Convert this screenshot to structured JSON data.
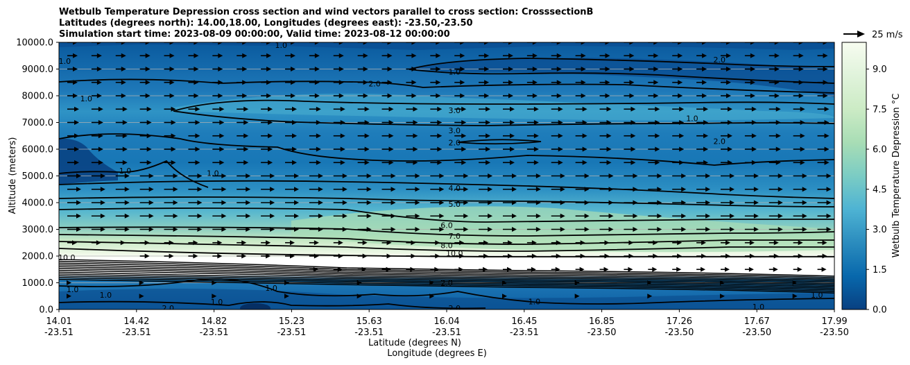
{
  "chart_data": {
    "type": "heatmap",
    "subtype": "filled contour cross-section with wind vectors",
    "title_lines": [
      "Wetbulb Temperature Depression cross section and wind vectors parallel to cross section: CrosssectionB",
      "Latitudes (degrees north): 14.00,18.00, Longitudes (degrees east): -23.50,-23.50",
      "Simulation start time: 2023-08-09 00:00:00, Valid time: 2023-08-12 00:00:00"
    ],
    "ylabel": "Altitude (meters)",
    "xlabel_lines": [
      "Latitude (degrees N)",
      "Longitude (degrees E)"
    ],
    "ylim": [
      0,
      10000
    ],
    "y_ticks": [
      "0.0",
      "1000.0",
      "2000.0",
      "3000.0",
      "4000.0",
      "5000.0",
      "6000.0",
      "7000.0",
      "8000.0",
      "9000.0",
      "10000.0"
    ],
    "y_tick_values": [
      0,
      1000,
      2000,
      3000,
      4000,
      5000,
      6000,
      7000,
      8000,
      9000,
      10000
    ],
    "x_ticks": [
      {
        "lat": "14.01",
        "lon": "-23.51",
        "frac": 0.0
      },
      {
        "lat": "14.42",
        "lon": "-23.51",
        "frac": 0.1
      },
      {
        "lat": "14.82",
        "lon": "-23.51",
        "frac": 0.2
      },
      {
        "lat": "15.23",
        "lon": "-23.51",
        "frac": 0.3
      },
      {
        "lat": "15.63",
        "lon": "-23.51",
        "frac": 0.4
      },
      {
        "lat": "16.04",
        "lon": "-23.51",
        "frac": 0.5
      },
      {
        "lat": "16.45",
        "lon": "-23.51",
        "frac": 0.6
      },
      {
        "lat": "16.85",
        "lon": "-23.50",
        "frac": 0.7
      },
      {
        "lat": "17.26",
        "lon": "-23.50",
        "frac": 0.8
      },
      {
        "lat": "17.67",
        "lon": "-23.50",
        "frac": 0.9
      },
      {
        "lat": "17.99",
        "lon": "-23.50",
        "frac": 1.0
      }
    ],
    "grid_horizontal": true,
    "colorbar": {
      "label": "Wetbulb Temperature Depression °C",
      "range": [
        0,
        10
      ],
      "ticks": [
        "0.0",
        "1.5",
        "3.0",
        "4.5",
        "6.0",
        "7.5",
        "9.0"
      ],
      "tick_values": [
        0,
        1.5,
        3.0,
        4.5,
        6.0,
        7.5,
        9.0
      ],
      "colormap": "GnBu_r",
      "stops": [
        "#084081",
        "#0868ac",
        "#2b8cbe",
        "#4eb3d3",
        "#7bccc4",
        "#a8ddb5",
        "#ccebc5",
        "#e0f3db",
        "#f7fcf0"
      ]
    },
    "quiver_key": {
      "label": "25 m/s",
      "speed": 25
    },
    "contour_labels": [
      {
        "text": "1.0",
        "lat": 16.04,
        "alt": 8900
      },
      {
        "text": "2.0",
        "lat": 15.63,
        "alt": 8450
      },
      {
        "text": "3.0",
        "lat": 16.04,
        "alt": 7450
      },
      {
        "text": "3.0",
        "lat": 16.04,
        "alt": 6700
      },
      {
        "text": "2.0",
        "lat": 16.04,
        "alt": 6250
      },
      {
        "text": "4.0",
        "lat": 16.04,
        "alt": 4550
      },
      {
        "text": "5.0",
        "lat": 16.04,
        "alt": 3950
      },
      {
        "text": "6.0",
        "lat": 16.0,
        "alt": 3150
      },
      {
        "text": "7.0",
        "lat": 16.04,
        "alt": 2750
      },
      {
        "text": "8.0",
        "lat": 16.0,
        "alt": 2400
      },
      {
        "text": "10.0",
        "lat": 16.04,
        "alt": 2100
      },
      {
        "text": "2.0",
        "lat": 16.0,
        "alt": 1000
      },
      {
        "text": "2.0",
        "lat": 16.04,
        "alt": 50
      },
      {
        "text": "1.0",
        "lat": 14.82,
        "alt": 280
      },
      {
        "text": "2.0",
        "lat": 14.57,
        "alt": 50
      },
      {
        "text": "1.0",
        "lat": 17.26,
        "alt": 7150
      },
      {
        "text": "2.0",
        "lat": 17.4,
        "alt": 6300
      },
      {
        "text": "2.0",
        "lat": 17.4,
        "alt": 9350
      },
      {
        "text": "1.0",
        "lat": 14.04,
        "alt": 9300
      },
      {
        "text": "1.0",
        "lat": 14.15,
        "alt": 7900
      },
      {
        "text": "1.0",
        "lat": 14.35,
        "alt": 5200
      },
      {
        "text": "1.0",
        "lat": 14.8,
        "alt": 5100
      },
      {
        "text": "1.0",
        "lat": 15.15,
        "alt": 9900
      },
      {
        "text": "10.0",
        "lat": 14.05,
        "alt": 1950
      },
      {
        "text": "1.0",
        "lat": 14.08,
        "alt": 750
      },
      {
        "text": "1.0",
        "lat": 14.25,
        "alt": 550
      },
      {
        "text": "1.0",
        "lat": 15.1,
        "alt": 800
      },
      {
        "text": "1.0",
        "lat": 16.45,
        "alt": 300
      },
      {
        "text": "1.0",
        "lat": 17.6,
        "alt": 100
      },
      {
        "text": "1.0",
        "lat": 17.9,
        "alt": 550
      }
    ]
  }
}
